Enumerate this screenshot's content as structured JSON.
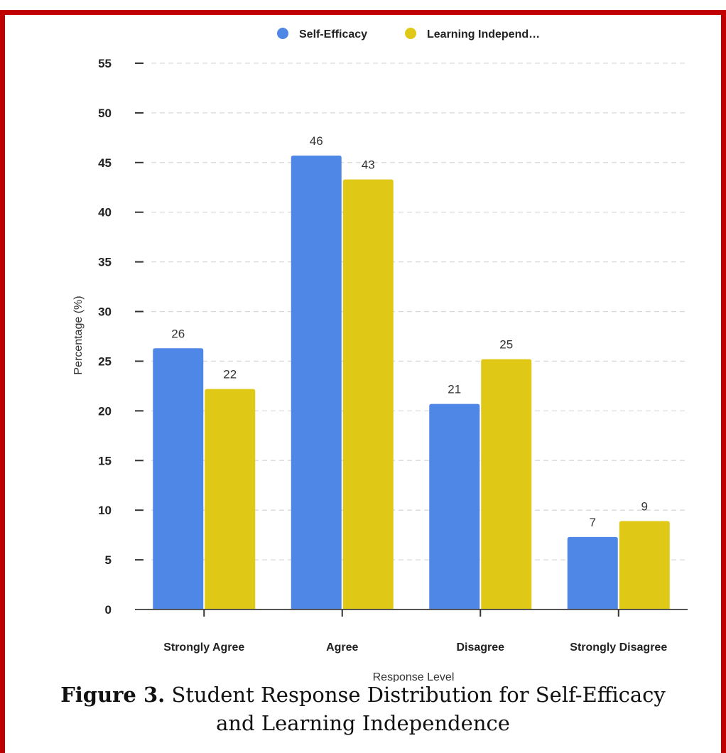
{
  "chart_data": {
    "type": "bar",
    "title": "",
    "xlabel": "Response Level",
    "ylabel": "Percentage (%)",
    "categories": [
      "Strongly Agree",
      "Agree",
      "Disagree",
      "Strongly Disagree"
    ],
    "series": [
      {
        "name": "Self-Efficacy",
        "values": [
          26.3,
          45.7,
          20.7,
          7.3
        ],
        "labels": [
          "26",
          "46",
          "21",
          "7"
        ],
        "color": "#4F87E6"
      },
      {
        "name": "Learning Independ…",
        "values": [
          22.2,
          43.3,
          25.2,
          8.9
        ],
        "labels": [
          "22",
          "43",
          "25",
          "9"
        ],
        "color": "#E0C916"
      }
    ],
    "ylim": [
      0,
      55
    ],
    "yticks": [
      0,
      5,
      10,
      15,
      20,
      25,
      30,
      35,
      40,
      45,
      50,
      55
    ],
    "grid": true,
    "legend": "top-center"
  },
  "caption": {
    "label": "Figure 3.",
    "line1": "Student Response Distribution for Self-Efficacy",
    "line2": "and Learning Independence"
  }
}
